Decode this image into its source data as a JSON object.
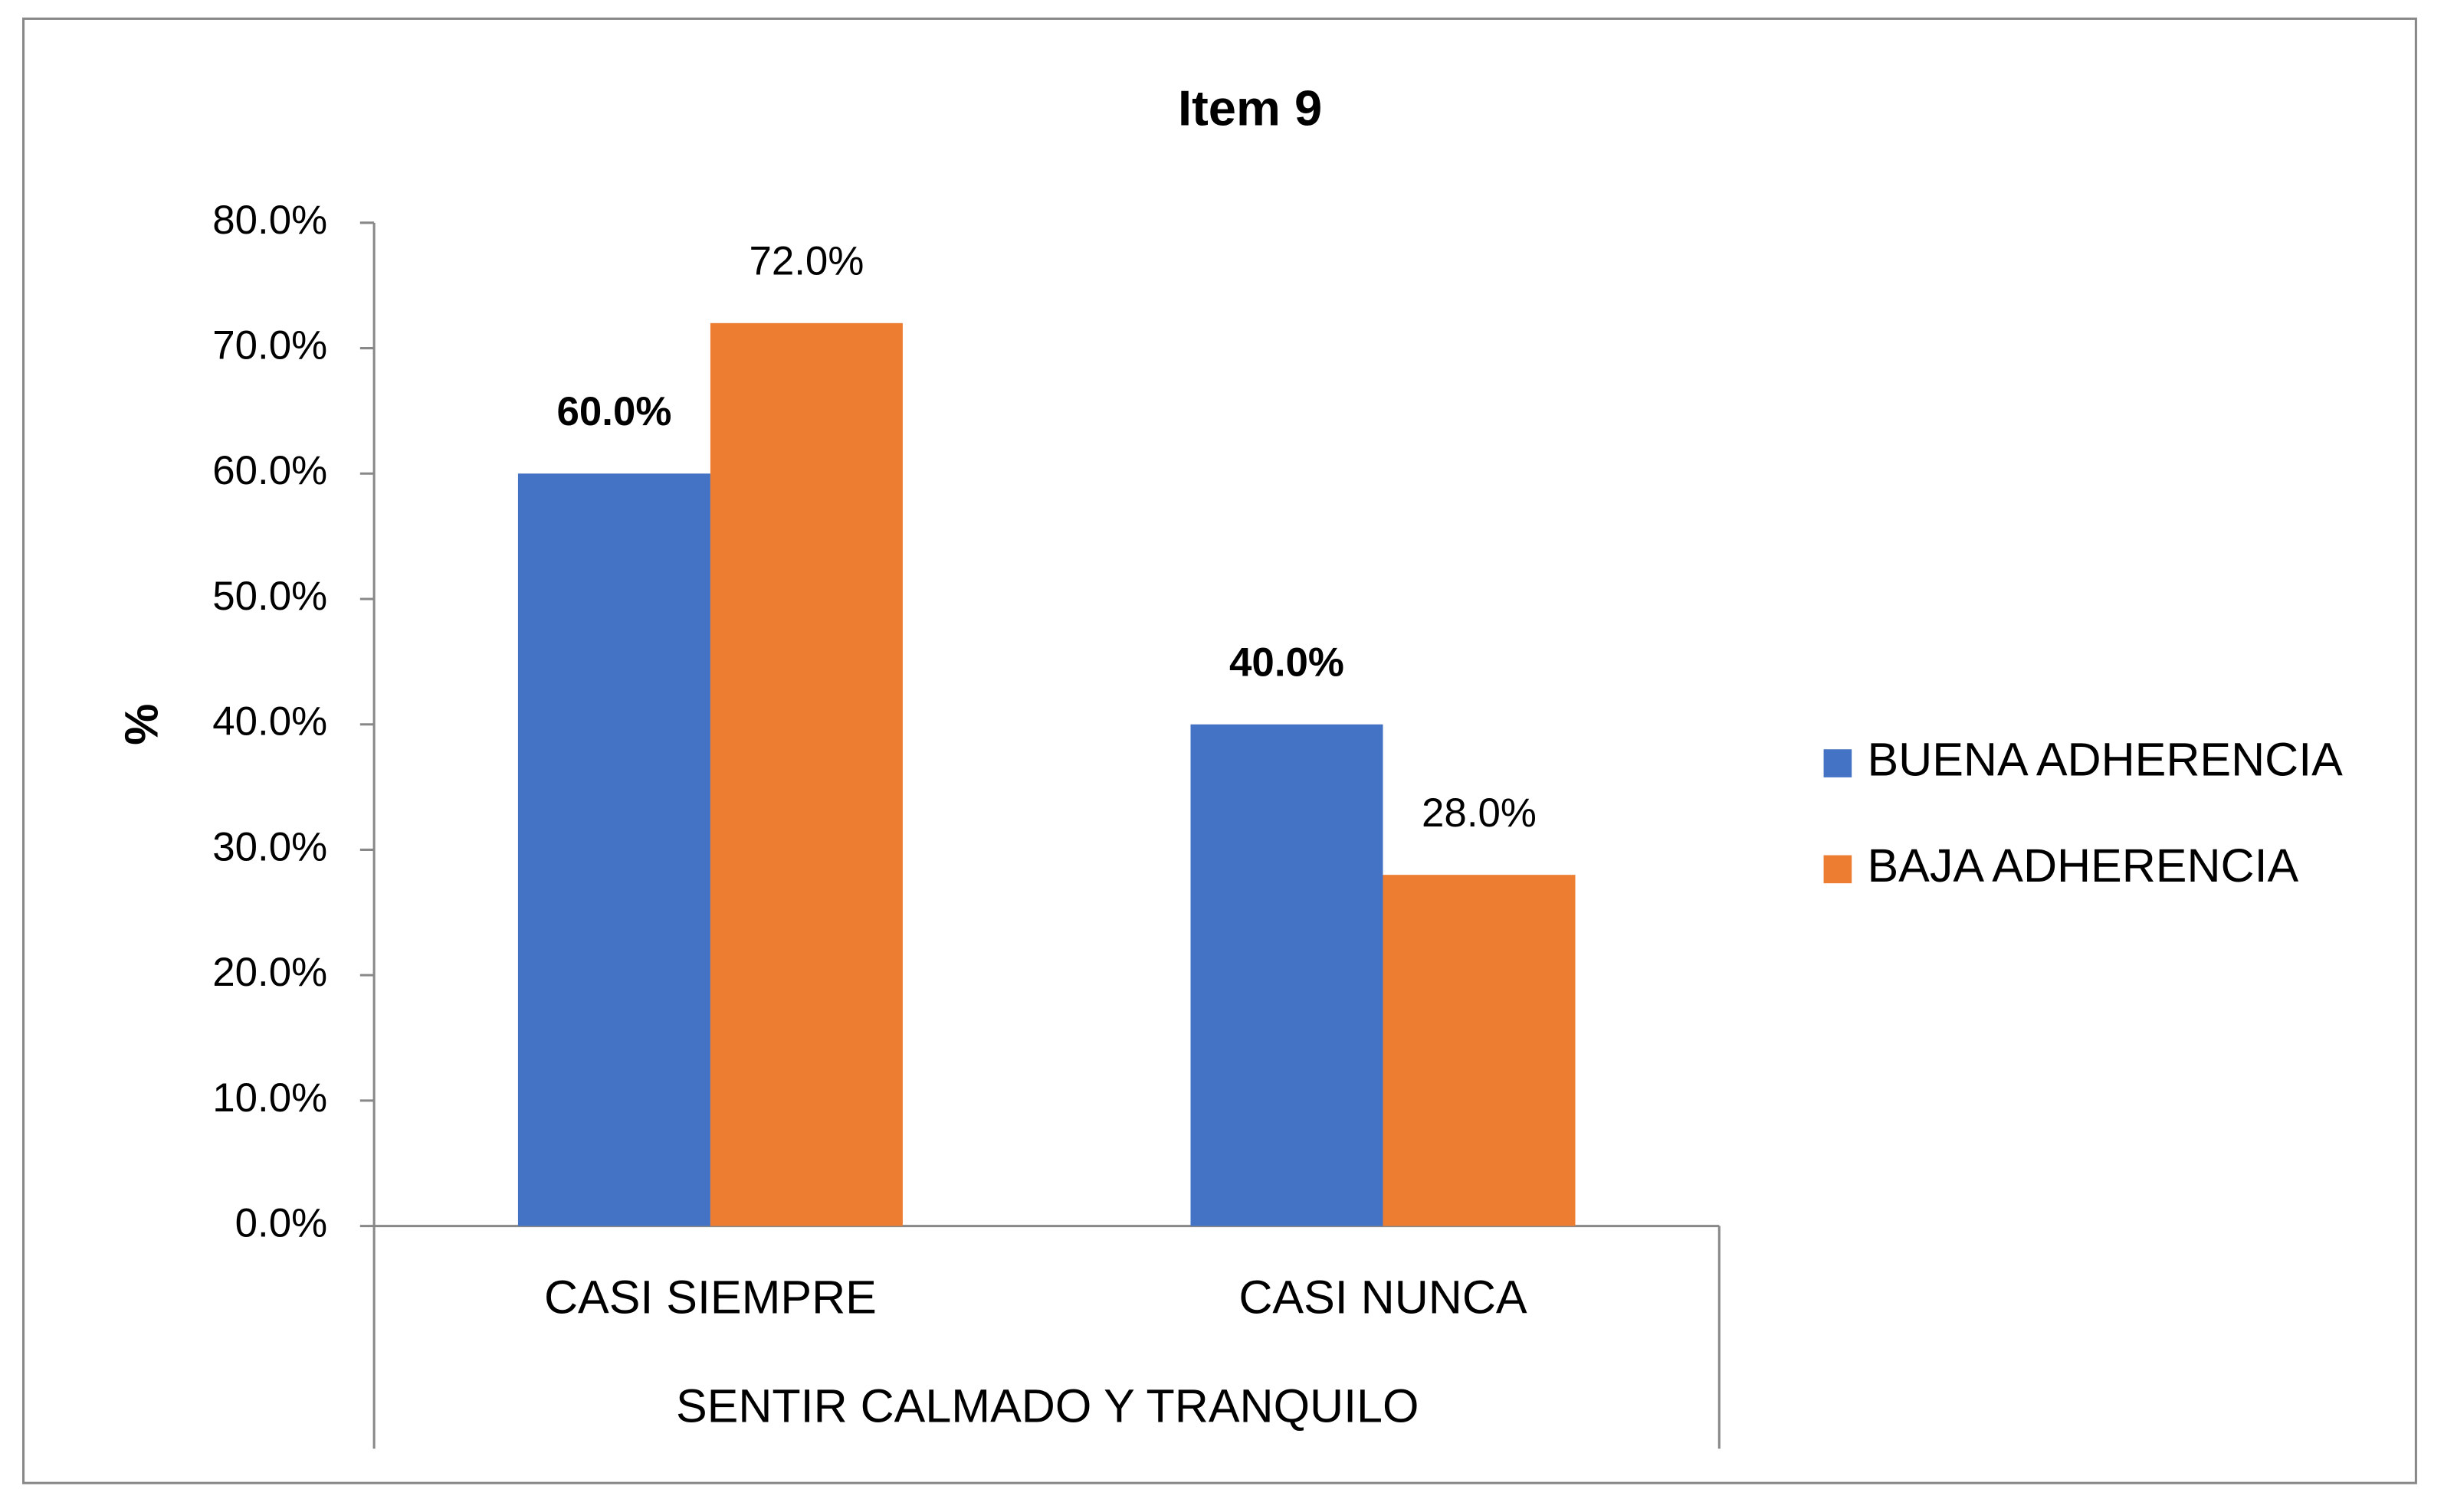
{
  "chart_data": {
    "type": "bar",
    "title": "Item 9",
    "y_label": "%",
    "group_label": "SENTIR CALMADO Y TRANQUILO",
    "categories": [
      "CASI SIEMPRE",
      "CASI NUNCA"
    ],
    "series": [
      {
        "name": "BUENA ADHERENCIA",
        "color": "#4472c4",
        "values": [
          60,
          40
        ],
        "value_labels": [
          "60.0%",
          "40.0%"
        ]
      },
      {
        "name": "BAJA ADHERENCIA",
        "color": "#ed7d31",
        "values": [
          72,
          28
        ],
        "value_labels": [
          "72.0%",
          "28.0%"
        ]
      }
    ],
    "ylim": [
      0,
      80
    ],
    "yticks": [
      {
        "value": 0,
        "label": "0.0%"
      },
      {
        "value": 10,
        "label": "10.0%"
      },
      {
        "value": 20,
        "label": "20.0%"
      },
      {
        "value": 30,
        "label": "30.0%"
      },
      {
        "value": 40,
        "label": "40.0%"
      },
      {
        "value": 50,
        "label": "50.0%"
      },
      {
        "value": 60,
        "label": "60.0%"
      },
      {
        "value": 70,
        "label": "70.0%"
      },
      {
        "value": 80,
        "label": "80.0%"
      }
    ],
    "grid": false,
    "legend": "right"
  }
}
